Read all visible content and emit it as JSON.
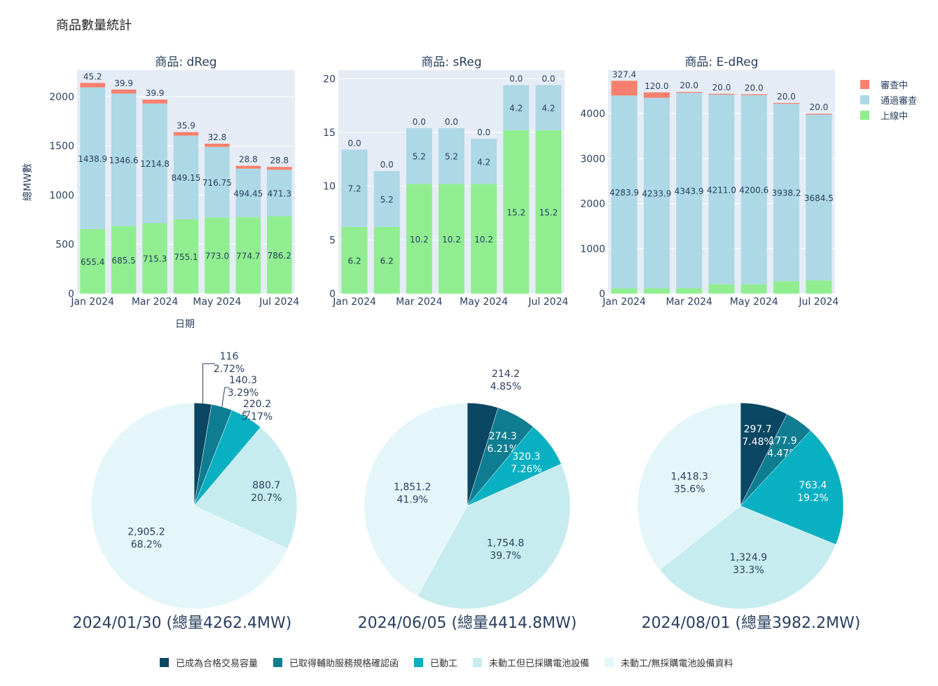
{
  "page_title": "商品數量統計",
  "colors": {
    "review": "#f9806e",
    "approved": "#add8e6",
    "online": "#90ee90",
    "bg": "#e5ecf6"
  },
  "bar_legend": [
    "審查中",
    "通過審查",
    "上線中"
  ],
  "pie_legend": [
    {
      "label": "已成為合格交易容量",
      "color": "#0b4663"
    },
    {
      "label": "已取得輔助服務規格確認函",
      "color": "#0f7d91"
    },
    {
      "label": "已動工",
      "color": "#08b0c2"
    },
    {
      "label": "未動工但已採購電池設備",
      "color": "#c7ecef"
    },
    {
      "label": "未動工/無採購電池設備資料",
      "color": "#e4f6fa"
    }
  ],
  "chart_data": [
    {
      "type": "bar",
      "stacked": true,
      "title": "商品: dReg",
      "ylabel": "總MW數",
      "xlabel": "日期",
      "ylim": [
        0,
        2270
      ],
      "yticks": [
        0,
        500,
        1000,
        1500,
        2000
      ],
      "categories": [
        "Jan 2024",
        "Feb 2024",
        "Mar 2024",
        "Apr 2024",
        "May 2024",
        "Jun 2024",
        "Jul 2024"
      ],
      "xticks": [
        "Jan 2024",
        "Mar 2024",
        "May 2024",
        "Jul 2024"
      ],
      "series": [
        {
          "name": "上線中",
          "values": [
            655.4,
            685.5,
            715.3,
            755.1,
            773.0,
            774.7,
            786.2
          ],
          "labels": [
            "655.4",
            "685.5",
            "715.3",
            "755.1",
            "773.0",
            "774.7",
            "786.2"
          ]
        },
        {
          "name": "通過審查",
          "values": [
            1438.9,
            1346.6,
            1214.8,
            849.15,
            716.75,
            494.45,
            471.3
          ],
          "labels": [
            "1438.9",
            "1346.6",
            "1214.8",
            "849.15",
            "716.75",
            "494.45",
            "471.3"
          ]
        },
        {
          "name": "審查中",
          "values": [
            45.2,
            39.9,
            39.9,
            35.9,
            32.8,
            28.8,
            28.8
          ],
          "labels": [
            "45.2",
            "39.9",
            "39.9",
            "35.9",
            "32.8",
            "28.8",
            "28.8"
          ]
        }
      ]
    },
    {
      "type": "bar",
      "stacked": true,
      "title": "商品: sReg",
      "ylim": [
        0,
        20.8
      ],
      "yticks": [
        0,
        5,
        10,
        15,
        20
      ],
      "categories": [
        "Jan 2024",
        "Feb 2024",
        "Mar 2024",
        "Apr 2024",
        "May 2024",
        "Jun 2024",
        "Jul 2024"
      ],
      "xticks": [
        "Jan 2024",
        "Mar 2024",
        "May 2024",
        "Jul 2024"
      ],
      "series": [
        {
          "name": "上線中",
          "values": [
            6.2,
            6.2,
            10.2,
            10.2,
            10.2,
            15.2,
            15.2
          ],
          "labels": [
            "6.2",
            "6.2",
            "10.2",
            "10.2",
            "10.2",
            "15.2",
            "15.2"
          ]
        },
        {
          "name": "通過審查",
          "values": [
            7.2,
            5.2,
            5.2,
            5.2,
            4.2,
            4.2,
            4.2
          ],
          "labels": [
            "7.2",
            "5.2",
            "5.2",
            "5.2",
            "4.2",
            "4.2",
            "4.2"
          ]
        },
        {
          "name": "審查中",
          "values": [
            0,
            0,
            0,
            0,
            0,
            0,
            0
          ],
          "labels": [
            "0.0",
            "0.0",
            "0.0",
            "0.0",
            "0.0",
            "0.0",
            "0.0"
          ]
        }
      ]
    },
    {
      "type": "bar",
      "stacked": true,
      "title": "商品: E-dReg",
      "ylim": [
        0,
        4965
      ],
      "yticks": [
        0,
        1000,
        2000,
        3000,
        4000
      ],
      "categories": [
        "Jan 2024",
        "Feb 2024",
        "Mar 2024",
        "Apr 2024",
        "May 2024",
        "Jun 2024",
        "Jul 2024"
      ],
      "xticks": [
        "Jan 2024",
        "Mar 2024",
        "May 2024",
        "Jul 2024"
      ],
      "series": [
        {
          "name": "上線中",
          "values": [
            116.0,
            116.0,
            116.0,
            207.9,
            207.9,
            276.6,
            293.8
          ],
          "labels": [
            "116.0",
            "116.0",
            "116.0",
            "207.9",
            "207.9",
            "276.6",
            "293.8"
          ]
        },
        {
          "name": "通過審查",
          "values": [
            4283.9,
            4233.9,
            4343.9,
            4211.0,
            4200.6,
            3938.2,
            3684.5
          ],
          "labels": [
            "4283.9",
            "4233.9",
            "4343.9",
            "4211.0",
            "4200.6",
            "3938.2",
            "3684.5"
          ]
        },
        {
          "name": "審查中",
          "values": [
            327.4,
            120.0,
            20.0,
            20.0,
            20.0,
            20.0,
            20.0
          ],
          "labels": [
            "327.4",
            "120.0",
            "20.0",
            "20.0",
            "20.0",
            "20.0",
            "20.0"
          ]
        }
      ]
    },
    {
      "type": "pie",
      "caption": "2024/01/30 (總量4262.4MW)",
      "values": [
        116,
        140.3,
        220.2,
        880.7,
        2905.2
      ],
      "labels": [
        "116",
        "140.3",
        "220.2",
        "880.7",
        "2,905.2"
      ],
      "percents": [
        "2.72%",
        "3.29%",
        "5.17%",
        "20.7%",
        "68.2%"
      ]
    },
    {
      "type": "pie",
      "caption": "2024/06/05 (總量4414.8MW)",
      "values": [
        214.2,
        274.3,
        320.3,
        1754.8,
        1851.2
      ],
      "labels": [
        "214.2",
        "274.3",
        "320.3",
        "1,754.8",
        "1,851.2"
      ],
      "percents": [
        "4.85%",
        "6.21%",
        "7.26%",
        "39.7%",
        "41.9%"
      ]
    },
    {
      "type": "pie",
      "caption": "2024/08/01 (總量3982.2MW)",
      "values": [
        297.7,
        177.9,
        763.4,
        1324.9,
        1418.3
      ],
      "labels": [
        "297.7",
        "177.9",
        "763.4",
        "1,324.9",
        "1,418.3"
      ],
      "percents": [
        "7.48%",
        "4.47%",
        "19.2%",
        "33.3%",
        "35.6%"
      ]
    }
  ]
}
